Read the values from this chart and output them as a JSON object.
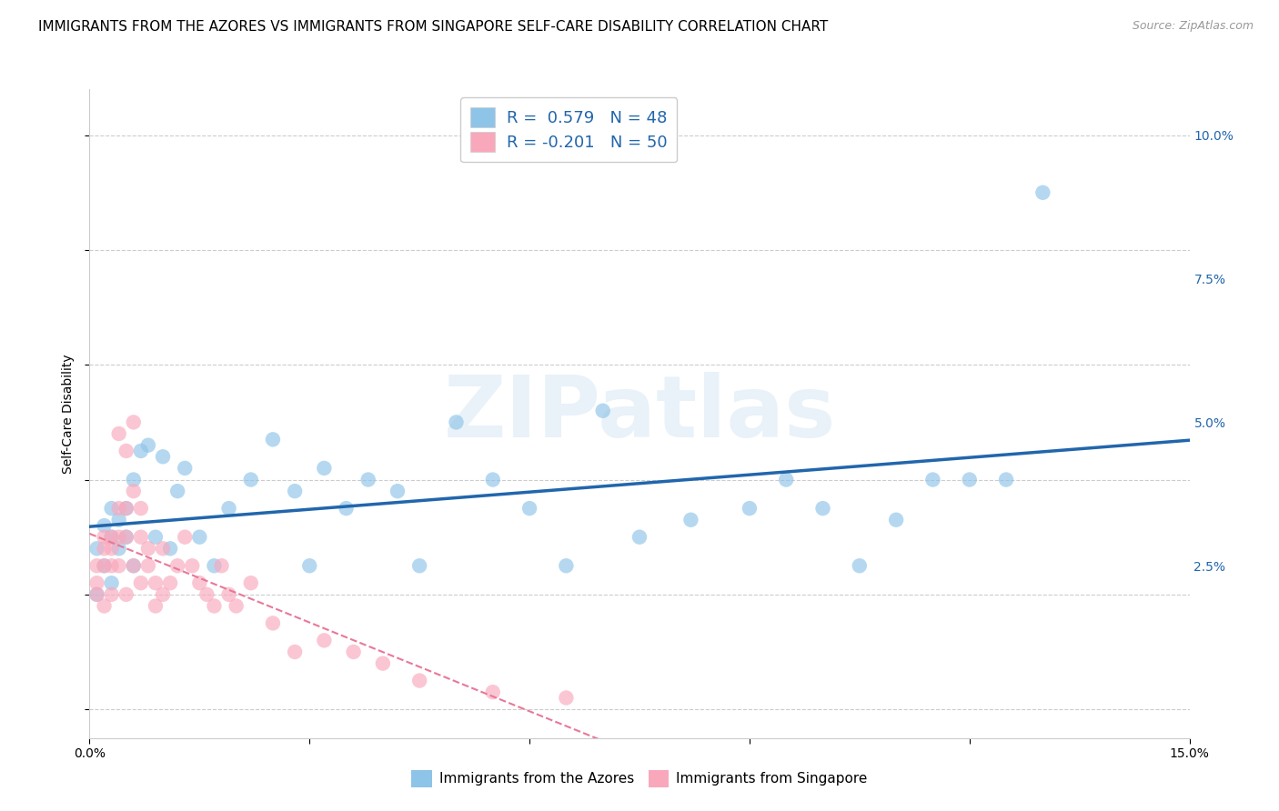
{
  "title": "IMMIGRANTS FROM THE AZORES VS IMMIGRANTS FROM SINGAPORE SELF-CARE DISABILITY CORRELATION CHART",
  "source": "Source: ZipAtlas.com",
  "ylabel": "Self-Care Disability",
  "xlim": [
    0.0,
    0.15
  ],
  "ylim": [
    -0.005,
    0.108
  ],
  "yticks": [
    0.0,
    0.025,
    0.05,
    0.075,
    0.1
  ],
  "ytick_labels": [
    "",
    "2.5%",
    "5.0%",
    "7.5%",
    "10.0%"
  ],
  "xticks": [
    0.0,
    0.03,
    0.06,
    0.09,
    0.12,
    0.15
  ],
  "xtick_labels": [
    "0.0%",
    "",
    "",
    "",
    "",
    "15.0%"
  ],
  "r_azores": 0.579,
  "n_azores": 48,
  "r_singapore": -0.201,
  "n_singapore": 50,
  "color_azores": "#8ec4e8",
  "color_singapore": "#f9a8bc",
  "color_line_azores": "#2166ac",
  "color_line_singapore": "#e87898",
  "background_color": "#ffffff",
  "grid_color": "#cccccc",
  "title_fontsize": 11,
  "tick_fontsize": 10,
  "watermark_text": "ZIPatlas",
  "azores_x": [
    0.001,
    0.001,
    0.002,
    0.002,
    0.003,
    0.003,
    0.003,
    0.004,
    0.004,
    0.005,
    0.005,
    0.006,
    0.006,
    0.007,
    0.008,
    0.009,
    0.01,
    0.011,
    0.012,
    0.013,
    0.015,
    0.017,
    0.019,
    0.022,
    0.025,
    0.028,
    0.03,
    0.032,
    0.035,
    0.038,
    0.042,
    0.045,
    0.05,
    0.055,
    0.06,
    0.065,
    0.07,
    0.075,
    0.082,
    0.09,
    0.095,
    0.1,
    0.105,
    0.11,
    0.115,
    0.12,
    0.125,
    0.13
  ],
  "azores_y": [
    0.02,
    0.028,
    0.025,
    0.032,
    0.022,
    0.03,
    0.035,
    0.028,
    0.033,
    0.03,
    0.035,
    0.025,
    0.04,
    0.045,
    0.046,
    0.03,
    0.044,
    0.028,
    0.038,
    0.042,
    0.03,
    0.025,
    0.035,
    0.04,
    0.047,
    0.038,
    0.025,
    0.042,
    0.035,
    0.04,
    0.038,
    0.025,
    0.05,
    0.04,
    0.035,
    0.025,
    0.052,
    0.03,
    0.033,
    0.035,
    0.04,
    0.035,
    0.025,
    0.033,
    0.04,
    0.04,
    0.04,
    0.09
  ],
  "singapore_x": [
    0.001,
    0.001,
    0.001,
    0.002,
    0.002,
    0.002,
    0.002,
    0.003,
    0.003,
    0.003,
    0.003,
    0.004,
    0.004,
    0.004,
    0.004,
    0.005,
    0.005,
    0.005,
    0.005,
    0.006,
    0.006,
    0.006,
    0.007,
    0.007,
    0.007,
    0.008,
    0.008,
    0.009,
    0.009,
    0.01,
    0.01,
    0.011,
    0.012,
    0.013,
    0.014,
    0.015,
    0.016,
    0.017,
    0.018,
    0.019,
    0.02,
    0.022,
    0.025,
    0.028,
    0.032,
    0.036,
    0.04,
    0.045,
    0.055,
    0.065
  ],
  "singapore_y": [
    0.025,
    0.022,
    0.02,
    0.03,
    0.028,
    0.025,
    0.018,
    0.028,
    0.03,
    0.025,
    0.02,
    0.035,
    0.03,
    0.025,
    0.048,
    0.045,
    0.03,
    0.035,
    0.02,
    0.05,
    0.025,
    0.038,
    0.03,
    0.022,
    0.035,
    0.028,
    0.025,
    0.022,
    0.018,
    0.028,
    0.02,
    0.022,
    0.025,
    0.03,
    0.025,
    0.022,
    0.02,
    0.018,
    0.025,
    0.02,
    0.018,
    0.022,
    0.015,
    0.01,
    0.012,
    0.01,
    0.008,
    0.005,
    0.003,
    0.002
  ]
}
